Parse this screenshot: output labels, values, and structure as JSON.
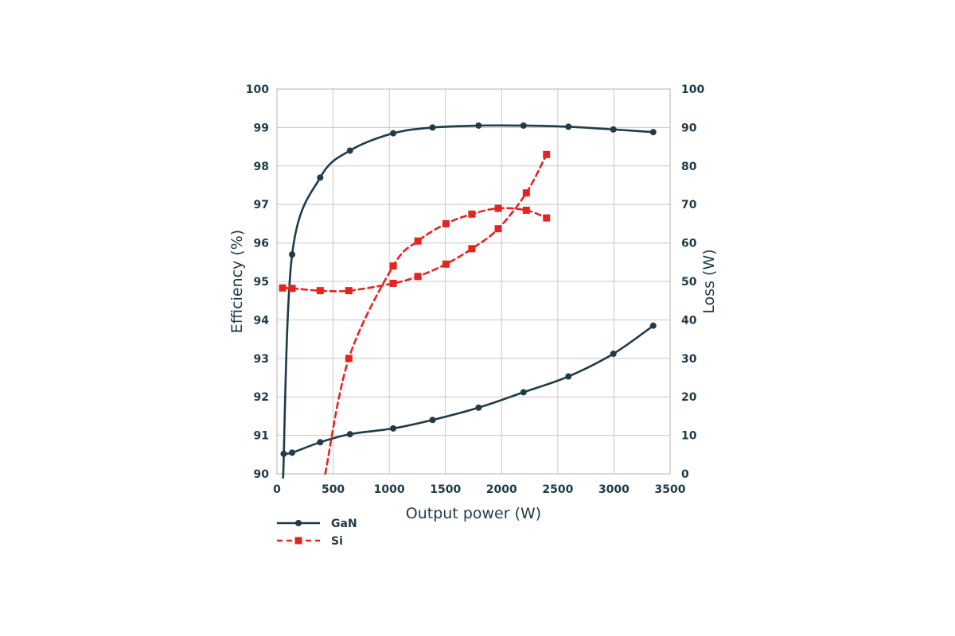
{
  "chart_data": {
    "type": "line",
    "xlabel": "Output power (W)",
    "ylabel_left": "Efficiency (%)",
    "ylabel_right": "Loss (W)",
    "xlim": [
      0,
      3500
    ],
    "ylim_left": [
      90,
      100
    ],
    "ylim_right": [
      0,
      100
    ],
    "x_ticks": [
      "0",
      "500",
      "1000",
      "1500",
      "2000",
      "2500",
      "3000",
      "3500"
    ],
    "y_left_ticks": [
      "90",
      "91",
      "92",
      "93",
      "94",
      "95",
      "96",
      "97",
      "98",
      "99",
      "100"
    ],
    "y_right_ticks": [
      "0",
      "10",
      "20",
      "30",
      "40",
      "50",
      "60",
      "70",
      "80",
      "90",
      "100"
    ],
    "grid": true,
    "legend_position": "bottom-left",
    "legend": [
      {
        "label": "GaN",
        "color": "#1f3a48",
        "style": "solid",
        "marker": "circle"
      },
      {
        "label": "Si",
        "color": "#e8231f",
        "style": "dashed",
        "marker": "square"
      }
    ],
    "series": [
      {
        "name": "GaN",
        "quantity": "efficiency",
        "axis": "left",
        "color": "#1f3a48",
        "style": "solid",
        "marker": "circle",
        "points": [
          [
            135,
            95.7
          ],
          [
            385,
            97.7
          ],
          [
            650,
            98.4
          ],
          [
            1035,
            98.85
          ],
          [
            1385,
            99.0
          ],
          [
            1795,
            99.05
          ],
          [
            2195,
            99.05
          ],
          [
            2595,
            99.02
          ],
          [
            2995,
            98.95
          ],
          [
            3350,
            98.88
          ]
        ],
        "curve_start": [
          55,
          89.9
        ]
      },
      {
        "name": "GaN",
        "quantity": "loss",
        "axis": "right",
        "color": "#1f3a48",
        "style": "solid",
        "marker": "circle",
        "points": [
          [
            60,
            5.2
          ],
          [
            135,
            5.5
          ],
          [
            385,
            8.2
          ],
          [
            650,
            10.3
          ],
          [
            1035,
            11.8
          ],
          [
            1385,
            14.0
          ],
          [
            1795,
            17.2
          ],
          [
            2195,
            21.2
          ],
          [
            2595,
            25.3
          ],
          [
            2995,
            31.2
          ],
          [
            3350,
            38.5
          ]
        ]
      },
      {
        "name": "Si",
        "quantity": "efficiency",
        "axis": "left",
        "color": "#e8231f",
        "style": "dashed",
        "marker": "square",
        "points": [
          [
            640,
            93.0
          ],
          [
            1035,
            95.4
          ],
          [
            1255,
            96.05
          ],
          [
            1505,
            96.5
          ],
          [
            1735,
            96.75
          ],
          [
            1970,
            96.9
          ],
          [
            2220,
            96.85
          ],
          [
            2400,
            96.65
          ]
        ],
        "curve_start": [
          430,
          90.0
        ]
      },
      {
        "name": "Si",
        "quantity": "loss",
        "axis": "right",
        "color": "#e8231f",
        "style": "dashed",
        "marker": "square",
        "points": [
          [
            50,
            48.3
          ],
          [
            135,
            48.2
          ],
          [
            385,
            47.6
          ],
          [
            640,
            47.6
          ],
          [
            1035,
            49.5
          ],
          [
            1255,
            51.3
          ],
          [
            1505,
            54.5
          ],
          [
            1735,
            58.5
          ],
          [
            1970,
            63.7
          ],
          [
            2220,
            73.0
          ],
          [
            2400,
            83.0
          ]
        ]
      }
    ]
  }
}
